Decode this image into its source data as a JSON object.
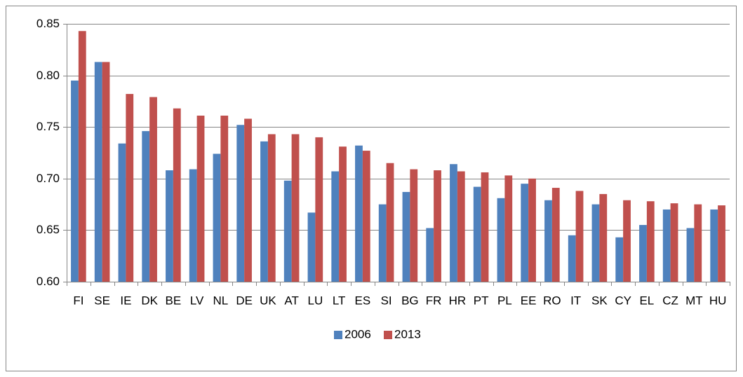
{
  "chart_data": {
    "type": "bar",
    "categories": [
      "FI",
      "SE",
      "IE",
      "DK",
      "BE",
      "LV",
      "NL",
      "DE",
      "UK",
      "AT",
      "LU",
      "LT",
      "ES",
      "SI",
      "BG",
      "FR",
      "HR",
      "PT",
      "PL",
      "EE",
      "RO",
      "IT",
      "SK",
      "CY",
      "EL",
      "CZ",
      "MT",
      "HU"
    ],
    "series": [
      {
        "name": "2006",
        "color": "#4f81bd",
        "values": [
          0.795,
          0.813,
          0.734,
          0.746,
          0.708,
          0.709,
          0.724,
          0.752,
          0.736,
          0.698,
          0.667,
          0.707,
          0.732,
          0.675,
          0.687,
          0.652,
          0.714,
          0.692,
          0.681,
          0.695,
          0.679,
          0.645,
          0.675,
          0.643,
          0.655,
          0.67,
          0.652,
          0.67
        ]
      },
      {
        "name": "2013",
        "color": "#c0504d",
        "values": [
          0.843,
          0.813,
          0.782,
          0.779,
          0.768,
          0.761,
          0.761,
          0.758,
          0.743,
          0.743,
          0.74,
          0.731,
          0.727,
          0.715,
          0.709,
          0.708,
          0.707,
          0.706,
          0.703,
          0.7,
          0.691,
          0.688,
          0.685,
          0.679,
          0.678,
          0.676,
          0.675,
          0.674
        ]
      }
    ],
    "ylim": [
      0.6,
      0.85
    ],
    "yticks": [
      {
        "value": 0.6,
        "label": "0.60"
      },
      {
        "value": 0.65,
        "label": "0.65"
      },
      {
        "value": 0.7,
        "label": "0.70"
      },
      {
        "value": 0.75,
        "label": "0.75"
      },
      {
        "value": 0.8,
        "label": "0.80"
      },
      {
        "value": 0.85,
        "label": "0.85"
      }
    ],
    "grid": true,
    "legend": "bottom"
  }
}
